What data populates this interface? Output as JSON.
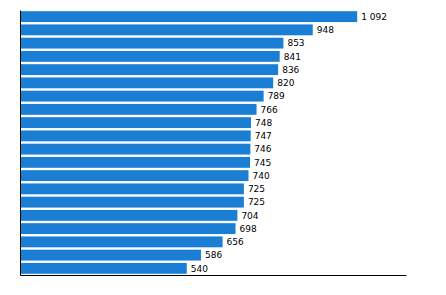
{
  "chart_data": {
    "type": "bar",
    "orientation": "horizontal",
    "categories": [
      null,
      null,
      null,
      null,
      null,
      null,
      null,
      null,
      null,
      null,
      null,
      null,
      null,
      null,
      null,
      null,
      null,
      null,
      null,
      null
    ],
    "values": [
      1092,
      948,
      853,
      841,
      836,
      820,
      789,
      766,
      748,
      747,
      746,
      745,
      740,
      725,
      725,
      704,
      698,
      656,
      586,
      540
    ],
    "value_labels": [
      "1 092",
      "948",
      "853",
      "841",
      "836",
      "820",
      "789",
      "766",
      "748",
      "747",
      "746",
      "745",
      "740",
      "725",
      "725",
      "704",
      "698",
      "656",
      "586",
      "540"
    ],
    "color": "#1a7fd4",
    "xlim": [
      0,
      1250
    ],
    "xticks": [],
    "grid": false,
    "data_labels": true,
    "tick_labels": false
  }
}
